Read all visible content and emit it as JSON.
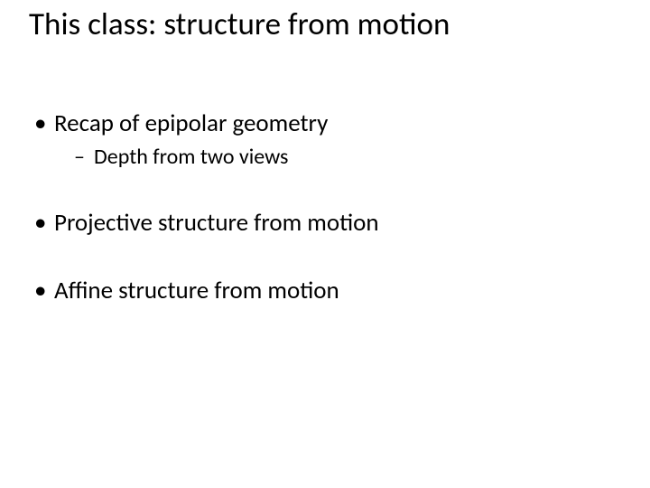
{
  "slide": {
    "title": "This class: structure from motion",
    "bullets": {
      "b1": "Recap of epipolar geometry",
      "b1_sub1": "Depth from two views",
      "b2": "Projective structure from motion",
      "b3": "Affine structure from motion"
    },
    "colors": {
      "background": "#ffffff",
      "text": "#000000"
    },
    "fonts": {
      "title_size_pt": 35,
      "l1_size_pt": 27,
      "l2_size_pt": 24,
      "family": "Calibri"
    }
  }
}
